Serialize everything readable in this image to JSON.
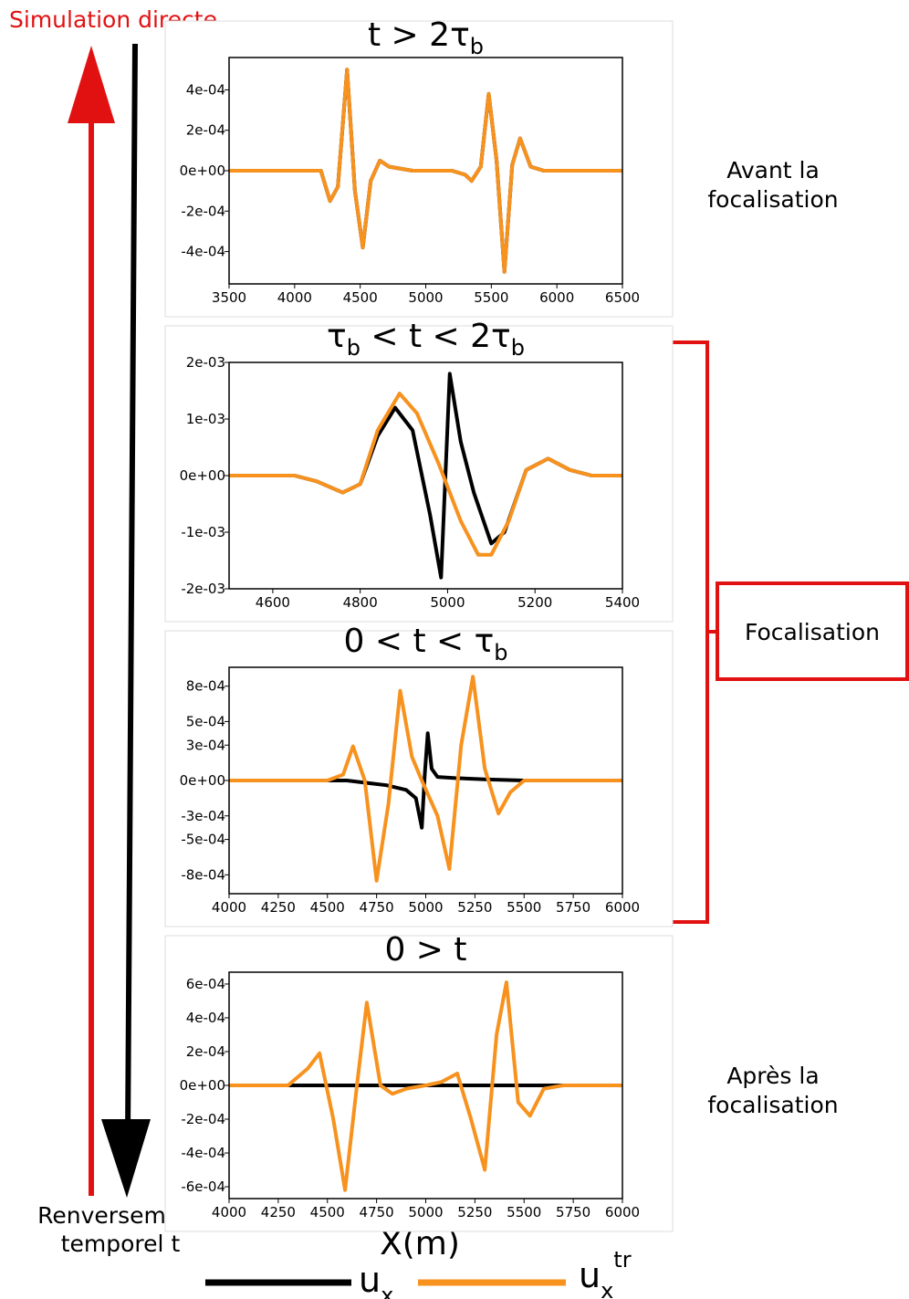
{
  "labels": {
    "top_left": "Simulation directe",
    "bottom_left_1": "Renversement",
    "bottom_left_2": "temporel t",
    "before_1": "Avant la",
    "before_2": "focalisation",
    "after_1": "Après la",
    "after_2": "focalisation",
    "focus_box": "Focalisation",
    "xaxis": "X(m)"
  },
  "legend": [
    {
      "name": "u",
      "sub": "x",
      "sup": "",
      "color": "#000000"
    },
    {
      "name": "u",
      "sub": "x",
      "sup": "tr",
      "color": "#f7921e"
    }
  ],
  "colors": {
    "ux": "#000000",
    "uxtr": "#f7921e",
    "arrows_red": "#e11111",
    "frame": "#dddddd"
  },
  "chart_data": [
    {
      "type": "line",
      "title": {
        "pre": "t > 2τ",
        "sub": "b",
        "post": ""
      },
      "xlim": [
        3500,
        6500
      ],
      "ylim": [
        -0.00056,
        0.00056
      ],
      "xticks": [
        "3500",
        "4000",
        "4500",
        "5000",
        "5500",
        "6000",
        "6500"
      ],
      "yticks": [
        {
          "v": 0.0004,
          "label": "4e-04"
        },
        {
          "v": 0.0002,
          "label": "2e-04"
        },
        {
          "v": 0,
          "label": "0e+00"
        },
        {
          "v": -0.0002,
          "label": "-2e-04"
        },
        {
          "v": -0.0004,
          "label": "-4e-04"
        }
      ],
      "series": [
        {
          "color": "#000000",
          "x": [
            3500,
            4200,
            4270,
            4330,
            4400,
            4460,
            4520,
            4580,
            4650,
            4720,
            4900,
            5200,
            5300,
            5350,
            5420,
            5480,
            5540,
            5600,
            5660,
            5720,
            5800,
            5900,
            6500
          ],
          "y": [
            0,
            0,
            -0.00015,
            -8e-05,
            0.0005,
            -0.0001,
            -0.00038,
            -5e-05,
            5e-05,
            2e-05,
            0,
            0,
            -2e-05,
            -5e-05,
            2e-05,
            0.00038,
            5e-05,
            -0.0005,
            3e-05,
            0.00016,
            2e-05,
            0,
            0
          ]
        },
        {
          "color": "#f7921e",
          "x": [
            3500,
            4200,
            4270,
            4330,
            4400,
            4460,
            4520,
            4580,
            4650,
            4720,
            4900,
            5200,
            5300,
            5350,
            5420,
            5480,
            5540,
            5600,
            5660,
            5720,
            5800,
            5900,
            6500
          ],
          "y": [
            0,
            0,
            -0.00015,
            -8e-05,
            0.0005,
            -0.0001,
            -0.00038,
            -5e-05,
            5e-05,
            2e-05,
            0,
            0,
            -2e-05,
            -5e-05,
            2e-05,
            0.00038,
            5e-05,
            -0.0005,
            3e-05,
            0.00016,
            2e-05,
            0,
            0
          ]
        }
      ]
    },
    {
      "type": "line",
      "title": {
        "pre": "τ",
        "sub": "b",
        "post": " <  t <  2τ",
        "sub2": "b"
      },
      "xlim": [
        4500,
        5400
      ],
      "ylim": [
        -0.002,
        0.002
      ],
      "xticks": [
        "4600",
        "4800",
        "5000",
        "5200",
        "5400"
      ],
      "yticks": [
        {
          "v": 0.002,
          "label": "2e-03"
        },
        {
          "v": 0.001,
          "label": "1e-03"
        },
        {
          "v": 0,
          "label": "0e+00"
        },
        {
          "v": -0.001,
          "label": "-1e-03"
        },
        {
          "v": -0.002,
          "label": "-2e-03"
        }
      ],
      "series": [
        {
          "color": "#000000",
          "x": [
            4500,
            4650,
            4700,
            4760,
            4800,
            4840,
            4880,
            4920,
            4960,
            4985,
            5005,
            5030,
            5060,
            5100,
            5130,
            5180,
            5230,
            5280,
            5330,
            5400
          ],
          "y": [
            0,
            0,
            -0.0001,
            -0.0003,
            -0.00015,
            0.0007,
            0.0012,
            0.0008,
            -0.0007,
            -0.0018,
            0.0018,
            0.0006,
            -0.0003,
            -0.0012,
            -0.001,
            0.0001,
            0.0003,
            0.0001,
            0,
            0
          ]
        },
        {
          "color": "#f7921e",
          "x": [
            4500,
            4650,
            4700,
            4760,
            4800,
            4840,
            4890,
            4930,
            4980,
            5030,
            5070,
            5100,
            5140,
            5180,
            5230,
            5280,
            5330,
            5400
          ],
          "y": [
            0,
            0,
            -0.0001,
            -0.0003,
            -0.00015,
            0.0008,
            0.00145,
            0.0011,
            0.0002,
            -0.0008,
            -0.0014,
            -0.0014,
            -0.0008,
            0.0001,
            0.0003,
            0.0001,
            0,
            0
          ]
        }
      ]
    },
    {
      "type": "line",
      "title": {
        "pre": "0 <  t <  τ",
        "sub": "b",
        "post": ""
      },
      "xlim": [
        4000,
        6000
      ],
      "ylim": [
        -0.00096,
        0.00096
      ],
      "xticks": [
        "4000",
        "4250",
        "4500",
        "4750",
        "5000",
        "5250",
        "5500",
        "5750",
        "6000"
      ],
      "yticks": [
        {
          "v": 0.0008,
          "label": "8e-04"
        },
        {
          "v": 0.0005,
          "label": "5e-04"
        },
        {
          "v": 0.0003,
          "label": "3e-04"
        },
        {
          "v": 0,
          "label": "0e+00"
        },
        {
          "v": -0.0003,
          "label": "-3e-04"
        },
        {
          "v": -0.0005,
          "label": "-5e-04"
        },
        {
          "v": -0.0008,
          "label": "-8e-04"
        }
      ],
      "series": [
        {
          "color": "#000000",
          "x": [
            4000,
            4500,
            4600,
            4700,
            4800,
            4900,
            4950,
            4980,
            4995,
            5010,
            5030,
            5060,
            5150,
            5300,
            5500,
            6000
          ],
          "y": [
            0,
            0,
            0,
            -2e-05,
            -4e-05,
            -8e-05,
            -0.00015,
            -0.0004,
            5e-05,
            0.0004,
            0.0001,
            3e-05,
            2e-05,
            1e-05,
            0,
            0
          ]
        },
        {
          "color": "#f7921e",
          "x": [
            4000,
            4500,
            4580,
            4630,
            4690,
            4750,
            4810,
            4870,
            4930,
            4980,
            5060,
            5120,
            5180,
            5240,
            5300,
            5370,
            5430,
            5500,
            6000
          ],
          "y": [
            0,
            0,
            5e-05,
            0.00029,
            0,
            -0.00085,
            -0.0002,
            0.00076,
            0.0002,
            0,
            -0.0003,
            -0.00075,
            0.0003,
            0.00088,
            0.0001,
            -0.00028,
            -0.0001,
            0,
            0
          ]
        }
      ]
    },
    {
      "type": "line",
      "title": {
        "pre": "0 > t",
        "sub": "",
        "post": ""
      },
      "xlim": [
        4000,
        6000
      ],
      "ylim": [
        -0.00067,
        0.00067
      ],
      "xticks": [
        "4000",
        "4250",
        "4500",
        "4750",
        "5000",
        "5250",
        "5500",
        "5750",
        "6000"
      ],
      "yticks": [
        {
          "v": 0.0006,
          "label": "6e-04"
        },
        {
          "v": 0.0004,
          "label": "4e-04"
        },
        {
          "v": 0.0002,
          "label": "2e-04"
        },
        {
          "v": 0,
          "label": "0e+00"
        },
        {
          "v": -0.0002,
          "label": "-2e-04"
        },
        {
          "v": -0.0004,
          "label": "-4e-04"
        },
        {
          "v": -0.0006,
          "label": "-6e-04"
        }
      ],
      "series": [
        {
          "color": "#000000",
          "x": [
            4000,
            6000
          ],
          "y": [
            0,
            0
          ]
        },
        {
          "color": "#f7921e",
          "x": [
            4000,
            4300,
            4400,
            4460,
            4530,
            4590,
            4650,
            4700,
            4770,
            4830,
            4900,
            5000,
            5080,
            5160,
            5230,
            5300,
            5360,
            5410,
            5470,
            5530,
            5600,
            5700,
            6000
          ],
          "y": [
            0,
            0,
            0.0001,
            0.00019,
            -0.0002,
            -0.00062,
            0,
            0.00049,
            0,
            -5e-05,
            -2e-05,
            0,
            2e-05,
            7e-05,
            -0.0002,
            -0.0005,
            0.0003,
            0.00061,
            -0.0001,
            -0.00018,
            -2e-05,
            0,
            0
          ]
        }
      ]
    }
  ]
}
